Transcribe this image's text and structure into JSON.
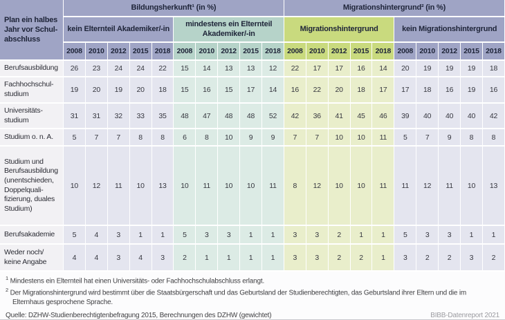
{
  "table": {
    "corner_label": "Plan ein halbes\nJahr vor Schul-\nabschluss",
    "top_groups": [
      {
        "label": "Bildungsherkunft¹ (in %)",
        "span": 10
      },
      {
        "label": "Migrationshintergrund² (in %)",
        "span": 10
      }
    ],
    "subgroups": [
      {
        "label": "kein Elternteil Akademiker/-in",
        "color": "purple"
      },
      {
        "label": "mindestens ein Elternteil\nAkademiker/-in",
        "color": "teal"
      },
      {
        "label": "Migrationshintergrund",
        "color": "green"
      },
      {
        "label": "kein Migrationshintergrund",
        "color": "purple"
      }
    ],
    "years": [
      "2008",
      "2010",
      "2012",
      "2015",
      "2018"
    ],
    "rows": [
      {
        "label": "Berufsausbildung",
        "values": [
          [
            26,
            23,
            24,
            24,
            22
          ],
          [
            15,
            14,
            13,
            13,
            12
          ],
          [
            22,
            17,
            17,
            16,
            14
          ],
          [
            20,
            19,
            19,
            19,
            18
          ]
        ]
      },
      {
        "label": "Fachhochschul-\nstudium",
        "values": [
          [
            19,
            20,
            19,
            20,
            18
          ],
          [
            15,
            16,
            15,
            17,
            14
          ],
          [
            16,
            22,
            20,
            18,
            17
          ],
          [
            17,
            18,
            16,
            19,
            16
          ]
        ]
      },
      {
        "label": "Universitäts-\nstudium",
        "values": [
          [
            31,
            31,
            32,
            33,
            35
          ],
          [
            48,
            47,
            48,
            48,
            52
          ],
          [
            42,
            36,
            41,
            45,
            46
          ],
          [
            39,
            40,
            40,
            40,
            42
          ]
        ]
      },
      {
        "label": "Studium o. n. A.",
        "values": [
          [
            5,
            7,
            7,
            8,
            8
          ],
          [
            6,
            8,
            10,
            9,
            9
          ],
          [
            7,
            7,
            10,
            10,
            11
          ],
          [
            5,
            7,
            9,
            8,
            8
          ]
        ]
      },
      {
        "label": "Studium und\nBerufsausbildung\n(unentschieden,\nDoppelquali-\nfizierung, duales\nStudium)",
        "values": [
          [
            10,
            12,
            11,
            10,
            13
          ],
          [
            10,
            11,
            10,
            10,
            11
          ],
          [
            8,
            12,
            10,
            10,
            11
          ],
          [
            11,
            12,
            11,
            10,
            13
          ]
        ]
      },
      {
        "label": "Berufsakademie",
        "values": [
          [
            5,
            4,
            3,
            1,
            1
          ],
          [
            5,
            3,
            3,
            1,
            1
          ],
          [
            3,
            3,
            2,
            1,
            1
          ],
          [
            5,
            3,
            3,
            1,
            1
          ]
        ]
      },
      {
        "label": "Weder noch/\nkeine Angabe",
        "values": [
          [
            4,
            4,
            3,
            4,
            3
          ],
          [
            2,
            1,
            1,
            1,
            1
          ],
          [
            3,
            3,
            2,
            2,
            1
          ],
          [
            3,
            2,
            2,
            3,
            2
          ]
        ]
      }
    ]
  },
  "footnotes": [
    {
      "marker": "1",
      "text": "Mindestens ein Elternteil hat einen Universitäts- oder Fachhochschulabschluss erlangt."
    },
    {
      "marker": "2",
      "text": "Der Migrationshintergrund wird bestimmt über die Staatsbürgerschaft und das Geburtsland der Studienberechtigten, das Geburtsland ihrer Eltern und die im Elternhaus gesprochene Sprache."
    }
  ],
  "source": "Quelle: DZHW-Studienberechtigtenbefragung 2015, Berechnungen des DZHW (gewichtet)",
  "report_credit": "BIBB-Datenreport 2021",
  "colors": {
    "header_purple": "#9fa4c5",
    "header_teal": "#b6d3c9",
    "header_green": "#c9da7e",
    "cell_lavender": "#e4e5ef",
    "cell_teal": "#dcebe5",
    "cell_green": "#e9eecb",
    "row_label_bg": "#f2f1f4",
    "header_text": "#1e2438",
    "credit_text": "#9b9ba0"
  }
}
